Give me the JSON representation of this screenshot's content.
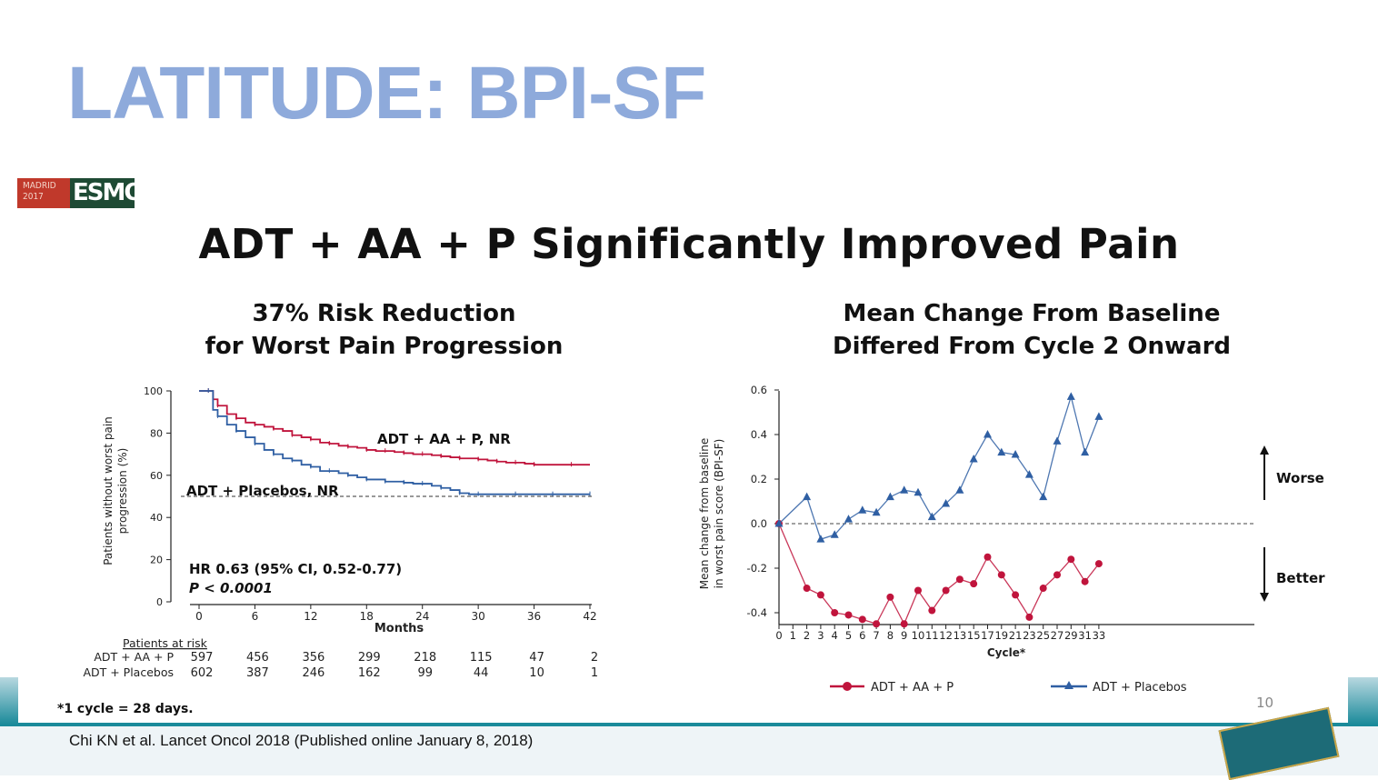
{
  "slide": {
    "title": "LATITUDE: BPI-SF",
    "logo_small": "MADRID\n2017",
    "logo_main": "ESMO",
    "headline": "ADT + AA + P Significantly Improved Pain",
    "footnote": "*1 cycle = 28 days.",
    "page_number": "10",
    "citation": "Chi KN et al. Lancet Oncol 2018 (Published online January 8, 2018)"
  },
  "colors": {
    "title": "#8eaadb",
    "aa_series": "#c0143c",
    "placebo_series": "#2f5fa3",
    "band": "#1a8a9a"
  },
  "chart_data": [
    {
      "type": "line",
      "subtype": "kaplan-meier",
      "title": "37% Risk Reduction\nfor Worst Pain Progression",
      "xlabel": "Months",
      "ylabel": "Patients without worst pain progression (%)",
      "xlim": [
        0,
        42
      ],
      "ylim": [
        0,
        100
      ],
      "xticks": [
        0,
        6,
        12,
        18,
        24,
        30,
        36,
        42
      ],
      "yticks": [
        0,
        20,
        40,
        60,
        80,
        100
      ],
      "series": [
        {
          "name": "ADT + AA + P, NR",
          "color": "#c0143c",
          "x": [
            0,
            1,
            1.5,
            2,
            3,
            4,
            5,
            6,
            7,
            8,
            9,
            10,
            11,
            12,
            13,
            14,
            15,
            16,
            17,
            18,
            19,
            20,
            21,
            22,
            23,
            24,
            25,
            26,
            27,
            28,
            29,
            30,
            31,
            32,
            33,
            34,
            35,
            36,
            38,
            40,
            42
          ],
          "y": [
            100,
            100,
            96,
            93,
            89,
            87,
            85,
            84,
            83,
            82,
            81,
            79,
            78,
            77,
            75.5,
            75,
            74,
            73.5,
            73,
            72,
            71.5,
            71.5,
            71,
            70.5,
            70,
            70,
            69.5,
            69,
            68.5,
            68,
            68,
            67.5,
            67,
            66.5,
            66,
            66,
            65.5,
            65,
            65,
            65,
            65
          ]
        },
        {
          "name": "ADT + Placebos, NR",
          "color": "#2f5fa3",
          "x": [
            0,
            1,
            1.5,
            2,
            3,
            4,
            5,
            6,
            7,
            8,
            9,
            10,
            11,
            12,
            13,
            14,
            15,
            16,
            17,
            18,
            19,
            20,
            21,
            22,
            23,
            24,
            25,
            26,
            27,
            28,
            29,
            30,
            32,
            34,
            36,
            38,
            40,
            42
          ],
          "y": [
            100,
            100,
            91,
            88,
            84,
            81,
            78,
            75,
            72,
            70,
            68,
            67,
            65,
            64,
            62,
            62,
            61,
            60,
            59,
            58,
            58,
            57,
            57,
            56.5,
            56,
            56,
            55,
            54,
            53,
            51.5,
            51,
            51,
            51,
            51,
            51,
            51,
            51,
            51
          ]
        }
      ],
      "median_line": 50,
      "annotations": [
        "HR 0.63 (95% CI, 0.52-0.77)",
        "P < 0.0001"
      ],
      "risk_table": {
        "header": "Patients at risk",
        "rows": [
          {
            "label": "ADT + AA + P",
            "values": [
              597,
              456,
              356,
              299,
              218,
              115,
              47,
              2
            ]
          },
          {
            "label": "ADT + Placebos",
            "values": [
              602,
              387,
              246,
              162,
              99,
              44,
              10,
              1
            ]
          }
        ]
      }
    },
    {
      "type": "line",
      "title": "Mean Change From Baseline\nDiffered From Cycle 2 Onward",
      "xlabel": "Cycle*",
      "ylabel": "Mean change from baseline in worst pain score (BPI-SF)",
      "ylim": [
        -0.45,
        0.6
      ],
      "xticks": [
        0,
        1,
        2,
        3,
        4,
        5,
        6,
        7,
        8,
        9,
        10,
        11,
        12,
        13,
        15,
        17,
        19,
        21,
        23,
        25,
        27,
        29,
        31,
        33
      ],
      "yticks": [
        -0.4,
        -0.2,
        0.0,
        0.2,
        0.4,
        0.6
      ],
      "tick_labels": [
        "0",
        "1",
        "2",
        "3",
        "4",
        "5",
        "6",
        "7",
        "8",
        "9",
        "10",
        "11",
        "12",
        "13",
        "15",
        "17",
        "19",
        "21",
        "23",
        "25",
        "27",
        "29",
        "31",
        "33"
      ],
      "y_tick_labels": [
        "-0.4",
        "-0.2",
        "0.0",
        "0.2",
        "0.4",
        "0.6"
      ],
      "series": [
        {
          "name": "ADT + AA + P",
          "color": "#c0143c",
          "marker": "circle",
          "x": [
            0,
            2,
            3,
            4,
            5,
            6,
            7,
            8,
            9,
            10,
            11,
            12,
            13,
            15,
            17,
            19,
            21,
            23,
            25,
            27,
            29,
            31,
            33
          ],
          "y": [
            0.0,
            -0.29,
            -0.32,
            -0.4,
            -0.41,
            -0.43,
            -0.45,
            -0.33,
            -0.45,
            -0.3,
            -0.39,
            -0.3,
            -0.25,
            -0.27,
            -0.15,
            -0.23,
            -0.32,
            -0.42,
            -0.29,
            -0.23,
            -0.16,
            -0.26,
            -0.18
          ]
        },
        {
          "name": "ADT + Placebos",
          "color": "#2f5fa3",
          "marker": "triangle",
          "x": [
            0,
            2,
            3,
            4,
            5,
            6,
            7,
            8,
            9,
            10,
            11,
            12,
            13,
            15,
            17,
            19,
            21,
            23,
            25,
            27,
            29,
            31,
            33
          ],
          "y": [
            0.0,
            0.12,
            -0.07,
            -0.05,
            0.02,
            0.06,
            0.05,
            0.12,
            0.15,
            0.14,
            0.03,
            0.09,
            0.15,
            0.29,
            0.4,
            0.32,
            0.31,
            0.22,
            0.12,
            0.37,
            0.57,
            0.32,
            0.48
          ]
        }
      ],
      "side_labels": {
        "up": "Worse",
        "down": "Better"
      },
      "legend": "bottom"
    }
  ]
}
